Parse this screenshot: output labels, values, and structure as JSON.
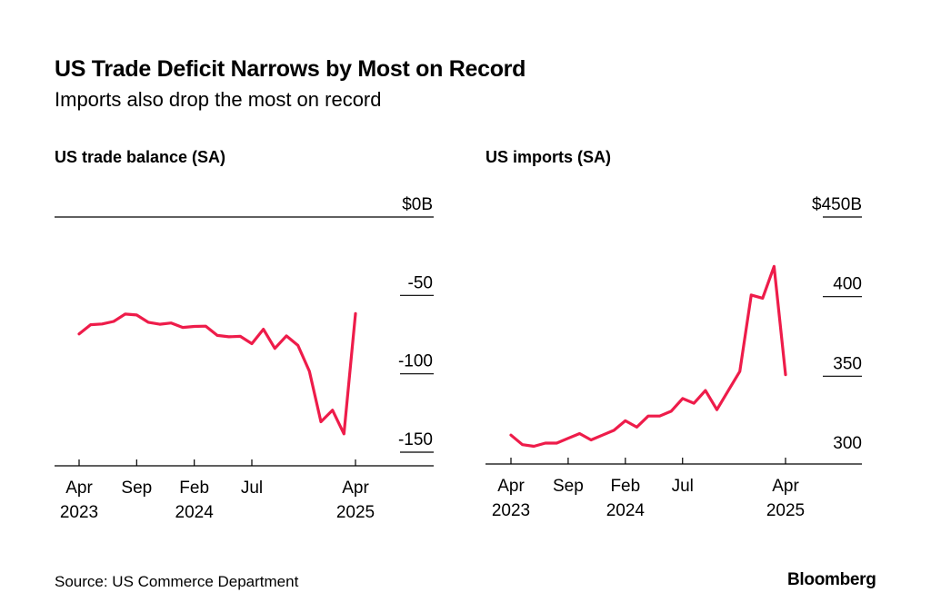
{
  "header": {
    "title": "US Trade Deficit Narrows by Most on Record",
    "subtitle": "Imports also drop the most on record"
  },
  "footer": {
    "source": "Source: US Commerce Department",
    "brand": "Bloomberg"
  },
  "colors": {
    "line": "#ee1c4a",
    "axis": "#000000"
  },
  "chart_data": [
    {
      "type": "line",
      "title": "US trade balance (SA)",
      "x": [
        "2023-04",
        "2023-05",
        "2023-06",
        "2023-07",
        "2023-08",
        "2023-09",
        "2023-10",
        "2023-11",
        "2023-12",
        "2024-01",
        "2024-02",
        "2024-03",
        "2024-04",
        "2024-05",
        "2024-06",
        "2024-07",
        "2024-08",
        "2024-09",
        "2024-10",
        "2024-11",
        "2024-12",
        "2025-01",
        "2025-02",
        "2025-03",
        "2025-04"
      ],
      "values": [
        -74.6,
        -68.7,
        -68.2,
        -66.6,
        -61.9,
        -62.5,
        -67.1,
        -68.4,
        -67.6,
        -70.4,
        -69.8,
        -69.6,
        -75.5,
        -76.4,
        -76.1,
        -80.8,
        -71.6,
        -83.8,
        -75.8,
        -81.9,
        -98.4,
        -130.6,
        -123.2,
        -138.3,
        -61.6
      ],
      "ylim": [
        -150,
        0
      ],
      "yticks": [
        0,
        -50,
        -100,
        -150
      ],
      "ytick_labels": [
        "$0B",
        "-50",
        "-100",
        "-150"
      ],
      "xtick_labels": [
        {
          "x": "2023-04",
          "lines": [
            "Apr",
            "2023"
          ]
        },
        {
          "x": "2023-09",
          "lines": [
            "Sep",
            ""
          ]
        },
        {
          "x": "2024-02",
          "lines": [
            "Feb",
            "2024"
          ]
        },
        {
          "x": "2024-07",
          "lines": [
            "Jul",
            ""
          ]
        },
        {
          "x": "2025-04",
          "lines": [
            "Apr",
            "2025"
          ]
        }
      ]
    },
    {
      "type": "line",
      "title": "US imports (SA)",
      "x": [
        "2023-04",
        "2023-05",
        "2023-06",
        "2023-07",
        "2023-08",
        "2023-09",
        "2023-10",
        "2023-11",
        "2023-12",
        "2024-01",
        "2024-02",
        "2024-03",
        "2024-04",
        "2024-05",
        "2024-06",
        "2024-07",
        "2024-08",
        "2024-09",
        "2024-10",
        "2024-11",
        "2024-12",
        "2025-01",
        "2025-02",
        "2025-03",
        "2025-04"
      ],
      "values": [
        313,
        307,
        306,
        308,
        308,
        311,
        314,
        310,
        313,
        316,
        322,
        318,
        325,
        325,
        328,
        336,
        333,
        341,
        329,
        341,
        353,
        401,
        399,
        419,
        351
      ],
      "ylim": [
        300,
        450
      ],
      "yticks": [
        450,
        400,
        350,
        300
      ],
      "ytick_labels": [
        "$450B",
        "400",
        "350",
        "300"
      ],
      "xtick_labels": [
        {
          "x": "2023-04",
          "lines": [
            "Apr",
            "2023"
          ]
        },
        {
          "x": "2023-09",
          "lines": [
            "Sep",
            ""
          ]
        },
        {
          "x": "2024-02",
          "lines": [
            "Feb",
            "2024"
          ]
        },
        {
          "x": "2024-07",
          "lines": [
            "Jul",
            ""
          ]
        },
        {
          "x": "2025-04",
          "lines": [
            "Apr",
            "2025"
          ]
        }
      ]
    }
  ]
}
